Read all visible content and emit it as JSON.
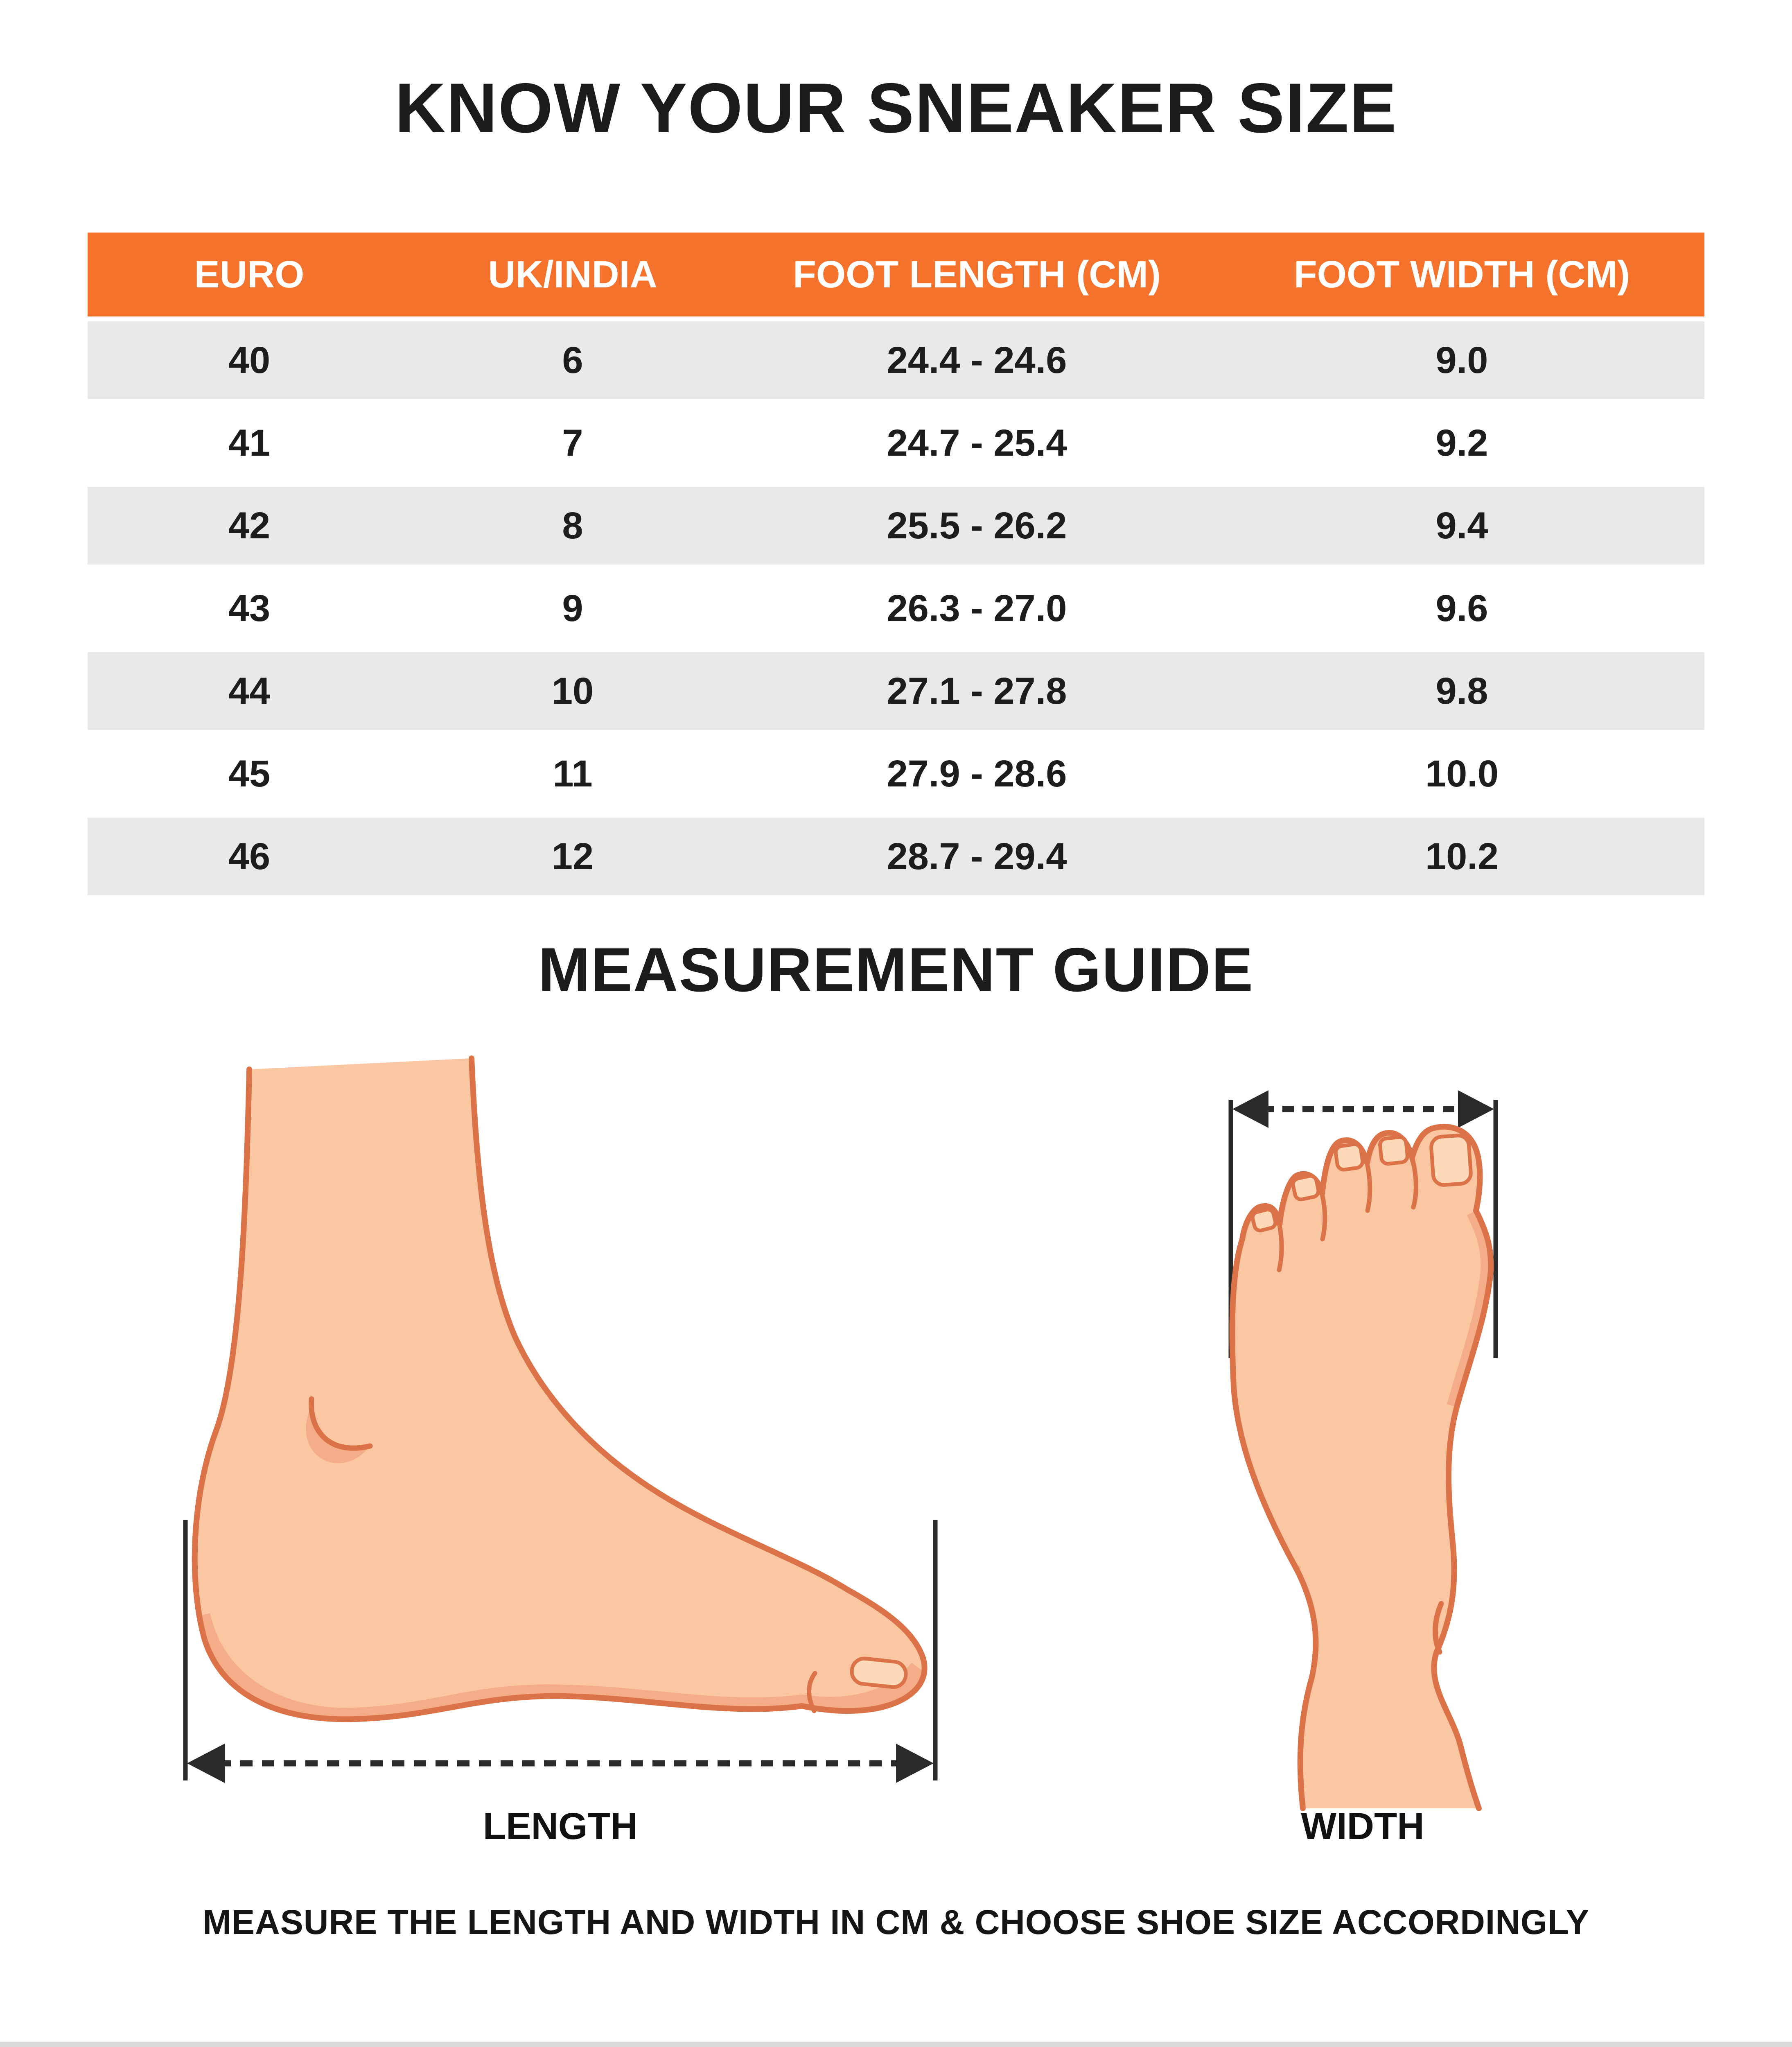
{
  "title": "KNOW YOUR SNEAKER SIZE",
  "table": {
    "headers": [
      "EURO",
      "UK/INDIA",
      "FOOT LENGTH (CM)",
      "FOOT WIDTH (CM)"
    ],
    "rows": [
      [
        "40",
        "6",
        "24.4 - 24.6",
        "9.0"
      ],
      [
        "41",
        "7",
        "24.7 - 25.4",
        "9.2"
      ],
      [
        "42",
        "8",
        "25.5 - 26.2",
        "9.4"
      ],
      [
        "43",
        "9",
        "26.3 - 27.0",
        "9.6"
      ],
      [
        "44",
        "10",
        "27.1 - 27.8",
        "9.8"
      ],
      [
        "45",
        "11",
        "27.9 - 28.6",
        "10.0"
      ],
      [
        "46",
        "12",
        "28.7 - 29.4",
        "10.2"
      ]
    ]
  },
  "guide": {
    "title": "MEASUREMENT GUIDE",
    "length_label": "LENGTH",
    "width_label": "WIDTH",
    "note": "MEASURE THE LENGTH AND WIDTH IN CM & CHOOSE SHOE SIZE ACCORDINGLY"
  },
  "colors": {
    "accent": "#F4722B",
    "row-alt": "#E9E9E9",
    "text": "#1D1D1B",
    "skin": "#FBC7A3",
    "skin-shade": "#F5AC88",
    "outline": "#DC7348",
    "nail": "#FBD9B9"
  }
}
